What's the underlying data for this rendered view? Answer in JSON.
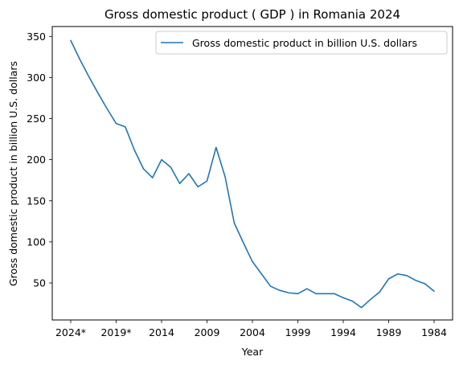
{
  "chart_data": {
    "type": "line",
    "title": "Gross domestic product ( GDP ) in Romania 2024",
    "xlabel": "Year",
    "ylabel": "Gross domestic product in billion U.S. dollars",
    "x_categories": [
      "2024*",
      "2023*",
      "2022*",
      "2021*",
      "2020*",
      "2019*",
      "2018",
      "2017",
      "2016",
      "2015",
      "2014",
      "2013",
      "2012",
      "2011",
      "2010",
      "2009",
      "2008",
      "2007",
      "2006",
      "2005",
      "2004",
      "2003",
      "2002",
      "2001",
      "2000",
      "1999",
      "1998",
      "1997",
      "1996",
      "1995",
      "1994",
      "1993",
      "1992",
      "1991",
      "1990",
      "1989",
      "1988",
      "1987",
      "1986",
      "1985",
      "1984"
    ],
    "x_ticks": [
      "2024*",
      "2019*",
      "2014",
      "2009",
      "2004",
      "1999",
      "1994",
      "1989",
      "1984"
    ],
    "y_ticks": [
      50,
      100,
      150,
      200,
      250,
      300,
      350
    ],
    "ylim": [
      5,
      362
    ],
    "grid": false,
    "legend_position": "top-right",
    "series": [
      {
        "name": "Gross domestic product in billion U.S. dollars",
        "color": "#1f77b4",
        "values": [
          345,
          322,
          301,
          281,
          262,
          244,
          240,
          212,
          189,
          178,
          200,
          191,
          171,
          183,
          167,
          174,
          215,
          179,
          123,
          99,
          76,
          61,
          46,
          41,
          38,
          37,
          43,
          37,
          37,
          37,
          32,
          28,
          20,
          30,
          39,
          55,
          61,
          59,
          53,
          49,
          40
        ]
      }
    ]
  }
}
